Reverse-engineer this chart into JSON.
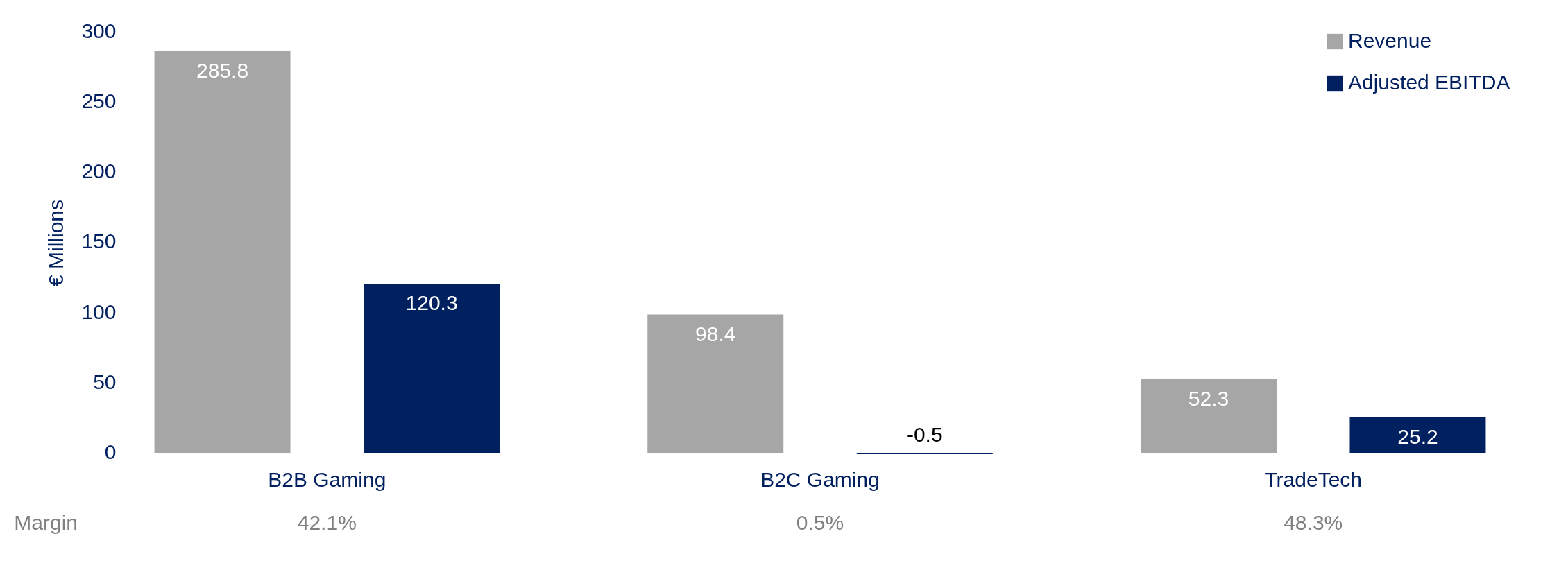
{
  "chart_data": {
    "type": "bar",
    "ylabel": "€ Millions",
    "categories": [
      "B2B Gaming",
      "B2C Gaming",
      "TradeTech"
    ],
    "series": [
      {
        "name": "Revenue",
        "color": "#a6a6a6",
        "values": [
          285.8,
          98.4,
          52.3
        ]
      },
      {
        "name": "Adjusted EBITDA",
        "color": "#002060",
        "values": [
          120.3,
          -0.5,
          25.2
        ]
      }
    ],
    "ylim": [
      -1,
      300
    ],
    "yticks": [
      0,
      50,
      100,
      150,
      200,
      250,
      300
    ],
    "grid": false,
    "legend": "top right",
    "data_labels": true,
    "annotations": [
      "Margin",
      "42.1%",
      "0.5%",
      "48.3%"
    ]
  }
}
